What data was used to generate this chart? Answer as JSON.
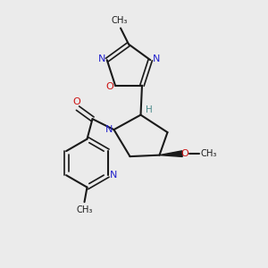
{
  "bg_color": "#ebebeb",
  "bond_color": "#1a1a1a",
  "N_color": "#2222cc",
  "O_color": "#cc1111",
  "H_color": "#4a8a8a",
  "text_color": "#1a1a1a",
  "figsize": [
    3.0,
    3.0
  ],
  "dpi": 100,
  "xlim": [
    0,
    10
  ],
  "ylim": [
    0,
    10
  ]
}
